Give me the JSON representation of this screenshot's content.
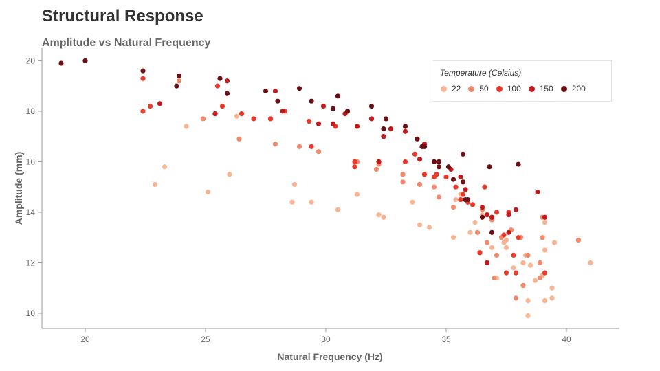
{
  "title": "Structural Response",
  "chart_data": {
    "type": "scatter",
    "title": "Amplitude vs Natural Frequency",
    "xlabel": "Natural Frequency (Hz)",
    "ylabel": "Amplitude (mm)",
    "xlim": [
      18.2,
      42.2
    ],
    "ylim": [
      9.4,
      20.5
    ],
    "xticks": [
      20,
      25,
      30,
      35,
      40
    ],
    "yticks": [
      10,
      12,
      14,
      16,
      18,
      20
    ],
    "grid": false,
    "legend": {
      "title": "Temperature (Celsius)",
      "placement": "top-right"
    },
    "series": [
      {
        "name": "22",
        "color": "#f9b593",
        "points": [
          [
            22.9,
            15.1
          ],
          [
            23.3,
            15.8
          ],
          [
            24.2,
            17.4
          ],
          [
            25.1,
            14.8
          ],
          [
            26.0,
            15.5
          ],
          [
            26.3,
            17.8
          ],
          [
            28.6,
            14.4
          ],
          [
            28.7,
            15.1
          ],
          [
            29.4,
            14.4
          ],
          [
            30.5,
            14.1
          ],
          [
            31.3,
            14.7
          ],
          [
            32.2,
            13.9
          ],
          [
            32.4,
            13.8
          ],
          [
            33.6,
            14.4
          ],
          [
            33.9,
            13.5
          ],
          [
            34.3,
            13.4
          ],
          [
            35.3,
            13.0
          ],
          [
            35.4,
            14.5
          ],
          [
            35.6,
            14.7
          ],
          [
            36.0,
            13.2
          ],
          [
            36.2,
            13.6
          ],
          [
            36.5,
            13.9
          ],
          [
            36.9,
            12.6
          ],
          [
            37.1,
            11.4
          ],
          [
            37.5,
            12.6
          ],
          [
            37.5,
            12.9
          ],
          [
            37.8,
            11.8
          ],
          [
            38.2,
            12.0
          ],
          [
            38.3,
            12.3
          ],
          [
            38.4,
            10.5
          ],
          [
            38.4,
            9.9
          ],
          [
            38.5,
            11.9
          ],
          [
            38.7,
            11.3
          ],
          [
            39.0,
            11.5
          ],
          [
            39.1,
            10.5
          ],
          [
            39.1,
            12.5
          ],
          [
            39.1,
            13.6
          ],
          [
            39.4,
            11.0
          ],
          [
            39.4,
            10.6
          ],
          [
            39.5,
            12.8
          ],
          [
            40.5,
            12.9
          ],
          [
            41.0,
            12.0
          ],
          [
            37.4,
            12.8
          ]
        ]
      },
      {
        "name": "50",
        "color": "#f18a6c",
        "points": [
          [
            23.9,
            19.2
          ],
          [
            24.9,
            17.7
          ],
          [
            25.4,
            17.9
          ],
          [
            26.4,
            16.9
          ],
          [
            27.9,
            16.7
          ],
          [
            28.9,
            16.6
          ],
          [
            29.7,
            16.4
          ],
          [
            31.3,
            16.0
          ],
          [
            32.1,
            15.7
          ],
          [
            33.2,
            15.5
          ],
          [
            33.9,
            15.1
          ],
          [
            34.5,
            15.0
          ],
          [
            34.7,
            14.6
          ],
          [
            35.3,
            14.2
          ],
          [
            35.8,
            14.9
          ],
          [
            36.3,
            13.2
          ],
          [
            36.5,
            14.1
          ],
          [
            36.9,
            13.7
          ],
          [
            37.1,
            12.3
          ],
          [
            37.3,
            13.0
          ],
          [
            37.7,
            13.3
          ],
          [
            38.1,
            13.0
          ],
          [
            38.4,
            12.3
          ],
          [
            38.9,
            12.0
          ],
          [
            39.0,
            13.8
          ],
          [
            40.5,
            12.9
          ],
          [
            36.7,
            12.8
          ],
          [
            37.0,
            11.4
          ],
          [
            37.9,
            10.6
          ],
          [
            38.2,
            11.1
          ],
          [
            38.9,
            11.4
          ],
          [
            39.0,
            13.0
          ],
          [
            32.2,
            15.9
          ],
          [
            33.2,
            15.2
          ]
        ]
      },
      {
        "name": "100",
        "color": "#e83a2a",
        "points": [
          [
            22.4,
            19.3
          ],
          [
            22.4,
            18.0
          ],
          [
            22.7,
            18.2
          ],
          [
            25.5,
            19.0
          ],
          [
            25.7,
            18.2
          ],
          [
            26.5,
            17.9
          ],
          [
            27.0,
            17.7
          ],
          [
            28.3,
            18.0
          ],
          [
            29.3,
            17.6
          ],
          [
            29.4,
            16.6
          ],
          [
            30.4,
            17.4
          ],
          [
            31.2,
            16.0
          ],
          [
            31.2,
            15.8
          ],
          [
            32.2,
            16.0
          ],
          [
            32.4,
            17.0
          ],
          [
            33.3,
            16.0
          ],
          [
            33.7,
            16.3
          ],
          [
            34.1,
            15.5
          ],
          [
            34.5,
            15.4
          ],
          [
            34.6,
            15.5
          ],
          [
            35.0,
            15.4
          ],
          [
            35.4,
            15.0
          ],
          [
            35.6,
            14.5
          ],
          [
            35.7,
            14.7
          ],
          [
            35.9,
            14.4
          ],
          [
            36.1,
            14.3
          ],
          [
            36.6,
            15.0
          ],
          [
            36.7,
            12.0
          ],
          [
            36.9,
            13.8
          ],
          [
            37.1,
            14.0
          ],
          [
            37.4,
            13.1
          ],
          [
            37.5,
            11.6
          ],
          [
            37.6,
            14.0
          ],
          [
            37.8,
            12.3
          ],
          [
            37.9,
            11.6
          ],
          [
            38.0,
            13.0
          ],
          [
            39.1,
            11.6
          ],
          [
            27.7,
            17.7
          ],
          [
            36.4,
            12.4
          ]
        ]
      },
      {
        "name": "150",
        "color": "#c01a1d",
        "points": [
          [
            23.1,
            18.3
          ],
          [
            23.9,
            19.4
          ],
          [
            25.4,
            17.9
          ],
          [
            25.9,
            19.2
          ],
          [
            27.9,
            18.8
          ],
          [
            28.2,
            18.0
          ],
          [
            29.9,
            18.2
          ],
          [
            30.3,
            17.5
          ],
          [
            30.8,
            17.9
          ],
          [
            31.3,
            17.4
          ],
          [
            31.9,
            17.7
          ],
          [
            32.4,
            17.0
          ],
          [
            32.7,
            17.3
          ],
          [
            33.3,
            17.2
          ],
          [
            34.1,
            16.7
          ],
          [
            34.5,
            16.0
          ],
          [
            35.2,
            15.7
          ],
          [
            35.6,
            15.4
          ],
          [
            35.8,
            14.9
          ],
          [
            36.5,
            14.2
          ],
          [
            36.7,
            13.9
          ],
          [
            36.9,
            13.8
          ],
          [
            37.6,
            13.2
          ],
          [
            37.6,
            13.9
          ],
          [
            37.9,
            14.1
          ],
          [
            38.8,
            14.8
          ],
          [
            39.1,
            13.8
          ],
          [
            33.9,
            16.1
          ],
          [
            35.7,
            15.2
          ],
          [
            36.7,
            12.0
          ],
          [
            32.2,
            16.0
          ],
          [
            29.7,
            17.5
          ]
        ]
      },
      {
        "name": "200",
        "color": "#6b0e14",
        "points": [
          [
            19.0,
            19.9
          ],
          [
            20.0,
            20.0
          ],
          [
            22.4,
            19.6
          ],
          [
            23.8,
            19.0
          ],
          [
            23.9,
            19.4
          ],
          [
            25.6,
            19.3
          ],
          [
            25.9,
            18.7
          ],
          [
            27.5,
            18.8
          ],
          [
            28.0,
            18.4
          ],
          [
            28.9,
            18.9
          ],
          [
            29.4,
            18.4
          ],
          [
            30.3,
            18.1
          ],
          [
            30.5,
            18.6
          ],
          [
            30.9,
            18.0
          ],
          [
            31.9,
            18.2
          ],
          [
            32.4,
            17.3
          ],
          [
            32.5,
            17.7
          ],
          [
            33.3,
            17.4
          ],
          [
            33.8,
            16.9
          ],
          [
            34.0,
            16.6
          ],
          [
            34.1,
            16.6
          ],
          [
            34.5,
            16.0
          ],
          [
            34.7,
            16.0
          ],
          [
            35.1,
            15.8
          ],
          [
            35.3,
            15.3
          ],
          [
            35.7,
            15.2
          ],
          [
            35.7,
            16.3
          ],
          [
            35.8,
            14.5
          ],
          [
            35.9,
            14.5
          ],
          [
            36.5,
            13.8
          ],
          [
            36.8,
            15.8
          ],
          [
            36.9,
            13.2
          ],
          [
            38.0,
            15.9
          ],
          [
            34.7,
            15.8
          ]
        ]
      }
    ]
  }
}
